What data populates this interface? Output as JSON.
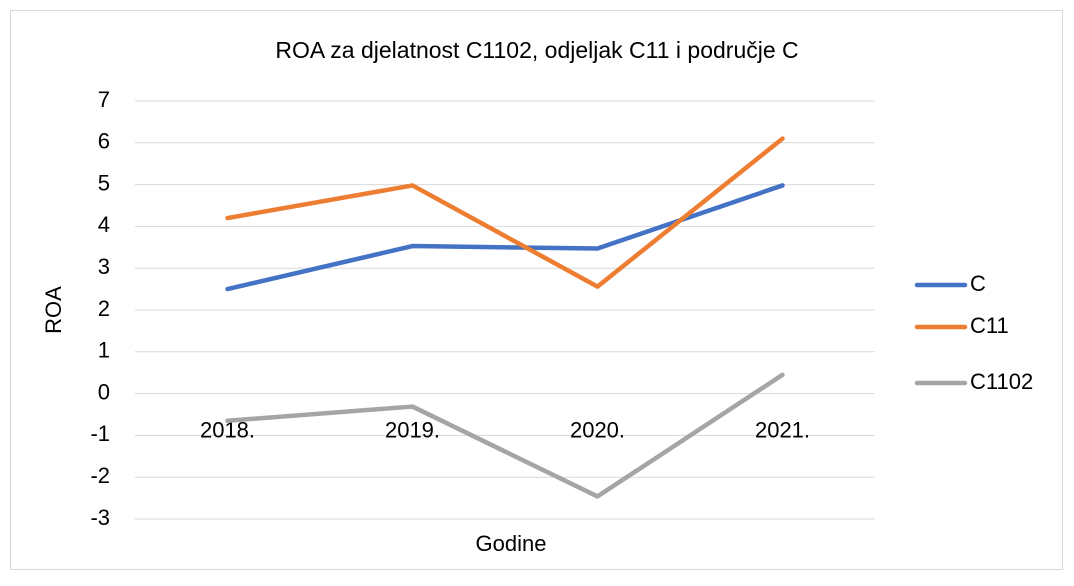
{
  "chart_data": {
    "type": "line",
    "title": "ROA za djelatnost C1102, odjeljak C11 i područje C",
    "x_label": "Godine",
    "y_label": "ROA",
    "categories": [
      "2018.",
      "2019.",
      "2020.",
      "2021."
    ],
    "series": [
      {
        "name": "C",
        "color": "#4472c4",
        "values": [
          2.5,
          3.53,
          3.47,
          4.98
        ]
      },
      {
        "name": "C11",
        "color": "#ed7d31",
        "values": [
          4.2,
          4.98,
          2.56,
          6.1
        ]
      },
      {
        "name": "C1102",
        "color": "#a5a5a5",
        "values": [
          -0.65,
          -0.31,
          -2.46,
          0.45
        ]
      }
    ],
    "ylim": [
      -3,
      7
    ],
    "yticks": [
      -3,
      -2,
      -1,
      0,
      1,
      2,
      3,
      4,
      5,
      6,
      7
    ],
    "grid": true,
    "legend": "right"
  }
}
